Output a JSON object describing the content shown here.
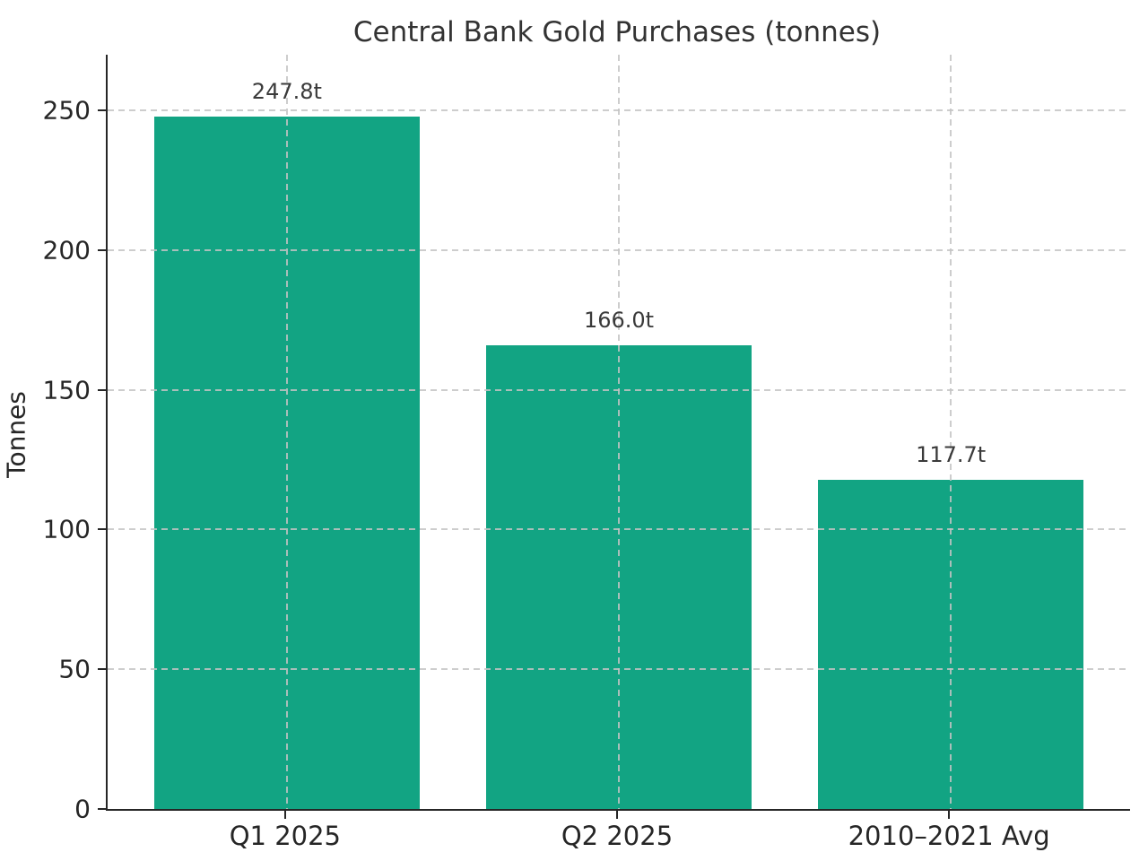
{
  "chart_data": {
    "type": "bar",
    "title": "Central Bank Gold Purchases (tonnes)",
    "xlabel": "",
    "ylabel": "Tonnes",
    "categories": [
      "Q1 2025",
      "Q2 2025",
      "2010–2021 Avg"
    ],
    "values": [
      247.8,
      166.0,
      117.7
    ],
    "bar_labels": [
      "247.8t",
      "166.0t",
      "117.7t"
    ],
    "yticks": [
      0,
      50,
      100,
      150,
      200,
      250
    ],
    "ylim": [
      0,
      269.9
    ],
    "grid": "dashed, drawn above bars, horizontal and vertical at tick positions",
    "legend": "none",
    "colors": {
      "bar": "#12a483",
      "spine": "#262626",
      "grid": "#c4c4c4",
      "tick_text": "#262626",
      "title_text": "#333333",
      "value_label_text": "#3a3a3a",
      "background": "#ffffff"
    }
  }
}
